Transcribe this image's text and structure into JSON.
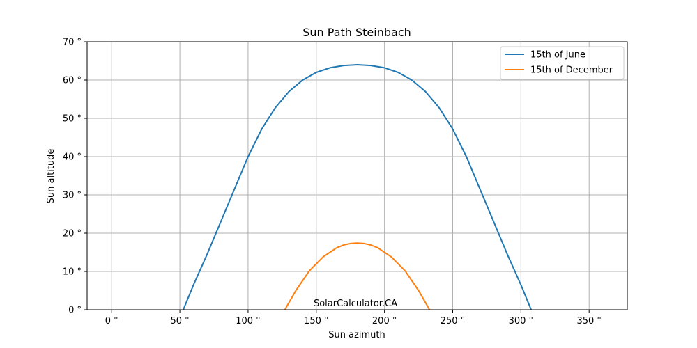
{
  "chart_data": {
    "type": "line",
    "title": "Sun Path Steinbach",
    "xlabel": "Sun azimuth",
    "ylabel": "Sun altitude",
    "xlim": [
      -18,
      378
    ],
    "ylim": [
      0,
      70
    ],
    "x_ticks": [
      0,
      50,
      100,
      150,
      200,
      250,
      300,
      350
    ],
    "x_tick_labels": [
      "0 °",
      "50 °",
      "100 °",
      "150 °",
      "200 °",
      "250 °",
      "300 °",
      "350 °"
    ],
    "y_ticks": [
      0,
      10,
      20,
      30,
      40,
      50,
      60,
      70
    ],
    "y_tick_labels": [
      "0 °",
      "10 °",
      "20 °",
      "30 °",
      "40 °",
      "50 °",
      "60 °",
      "70 °"
    ],
    "grid": true,
    "legend_position": "top-right",
    "annotation": "SolarCalculator.CA",
    "series": [
      {
        "name": "15th of June",
        "color": "#1f77b4",
        "x": [
          52.5,
          60,
          70,
          80,
          90,
          100,
          110,
          120,
          130,
          140,
          150,
          160,
          170,
          180,
          190,
          200,
          210,
          220,
          230,
          240,
          250,
          260,
          270,
          280,
          290,
          300,
          307.5
        ],
        "y": [
          0,
          6.5,
          14.5,
          23,
          31.5,
          40,
          47.2,
          52.8,
          57,
          60,
          62,
          63.2,
          63.8,
          64,
          63.8,
          63.2,
          62,
          60,
          57,
          52.8,
          47.2,
          40,
          31.5,
          23,
          14.5,
          6.5,
          0
        ]
      },
      {
        "name": "15th of December",
        "color": "#ff7f0e",
        "x": [
          127,
          135,
          145,
          155,
          165,
          170,
          175,
          180,
          185,
          190,
          195,
          205,
          215,
          225,
          233
        ],
        "y": [
          0,
          5,
          10.2,
          13.8,
          16.2,
          16.9,
          17.3,
          17.4,
          17.3,
          16.9,
          16.2,
          13.8,
          10.2,
          5,
          0
        ]
      }
    ]
  }
}
